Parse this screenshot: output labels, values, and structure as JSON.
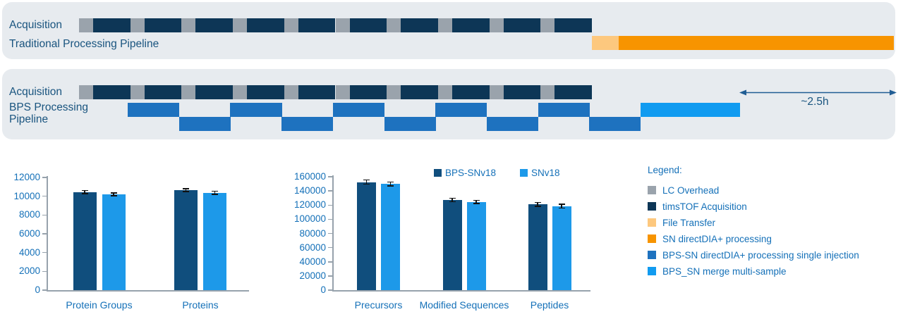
{
  "colors": {
    "panel_bg": "#e7ebef",
    "lc_overhead": "#9aa3ac",
    "timstof_acquisition": "#0d3656",
    "file_transfer": "#fdc87e",
    "sn_directdia_processing": "#f79400",
    "bps_sn_single_injection": "#1e72bf",
    "bps_sn_merge": "#119bf0",
    "bar_bps": "#104e7d",
    "bar_sn": "#1d99e9",
    "panel_label_text": "#19547f",
    "chart_text": "#1470b8",
    "arrow": "#205d94",
    "axis": "#97a2ac",
    "error_bar": "#111111"
  },
  "panels": {
    "traditional": {
      "acquisition_label": "Acquisition",
      "pipeline_label": "Traditional Processing Pipeline"
    },
    "bps": {
      "acquisition_label": "Acquisition",
      "pipeline_label_line1": "BPS Processing",
      "pipeline_label_line2": "Pipeline",
      "duration_label": "~2.5h"
    }
  },
  "pipeline": {
    "acquisition_cycles": 10,
    "cycle_segments": [
      "lc_overhead",
      "timstof_acquisition"
    ],
    "traditional_segments": [
      "file_transfer",
      "sn_directdia_processing"
    ],
    "bps_alternating_blocks": 10,
    "bps_merge_block": "bps_sn_merge"
  },
  "chart_data": [
    {
      "type": "bar",
      "title": "",
      "categories": [
        "Protein Groups",
        "Proteins"
      ],
      "series": [
        {
          "name": "BPS-SNv18",
          "color": "#104e7d",
          "values": [
            10450,
            10650
          ],
          "errors": [
            120,
            120
          ]
        },
        {
          "name": "SNv18",
          "color": "#1d99e9",
          "values": [
            10200,
            10380
          ],
          "errors": [
            120,
            120
          ]
        }
      ],
      "ylim": [
        0,
        12000
      ],
      "ytick_step": 2000,
      "grid": false,
      "legend_position": "none"
    },
    {
      "type": "bar",
      "title": "",
      "categories": [
        "Precursors",
        "Modified Sequences",
        "Peptides"
      ],
      "series": [
        {
          "name": "BPS-SNv18",
          "color": "#104e7d",
          "values": [
            152500,
            127000,
            121000
          ],
          "errors": [
            2800,
            2500,
            2800
          ]
        },
        {
          "name": "SNv18",
          "color": "#1d99e9",
          "values": [
            149800,
            124400,
            118500
          ],
          "errors": [
            2500,
            2200,
            2800
          ]
        }
      ],
      "ylim": [
        0,
        160000
      ],
      "ytick_step": 20000,
      "grid": false,
      "legend_position": "top"
    }
  ],
  "legend": {
    "title": "Legend:",
    "items": [
      {
        "label": "LC Overhead",
        "color": "#9aa3ac"
      },
      {
        "label": "timsTOF Acquisition",
        "color": "#0d3656"
      },
      {
        "label": "File Transfer",
        "color": "#fdc87e"
      },
      {
        "label": "SN directDIA+ processing",
        "color": "#f79400"
      },
      {
        "label": "BPS-SN directDIA+ processing single injection",
        "color": "#1e72bf"
      },
      {
        "label": "BPS_SN merge multi-sample",
        "color": "#119bf0"
      }
    ]
  }
}
